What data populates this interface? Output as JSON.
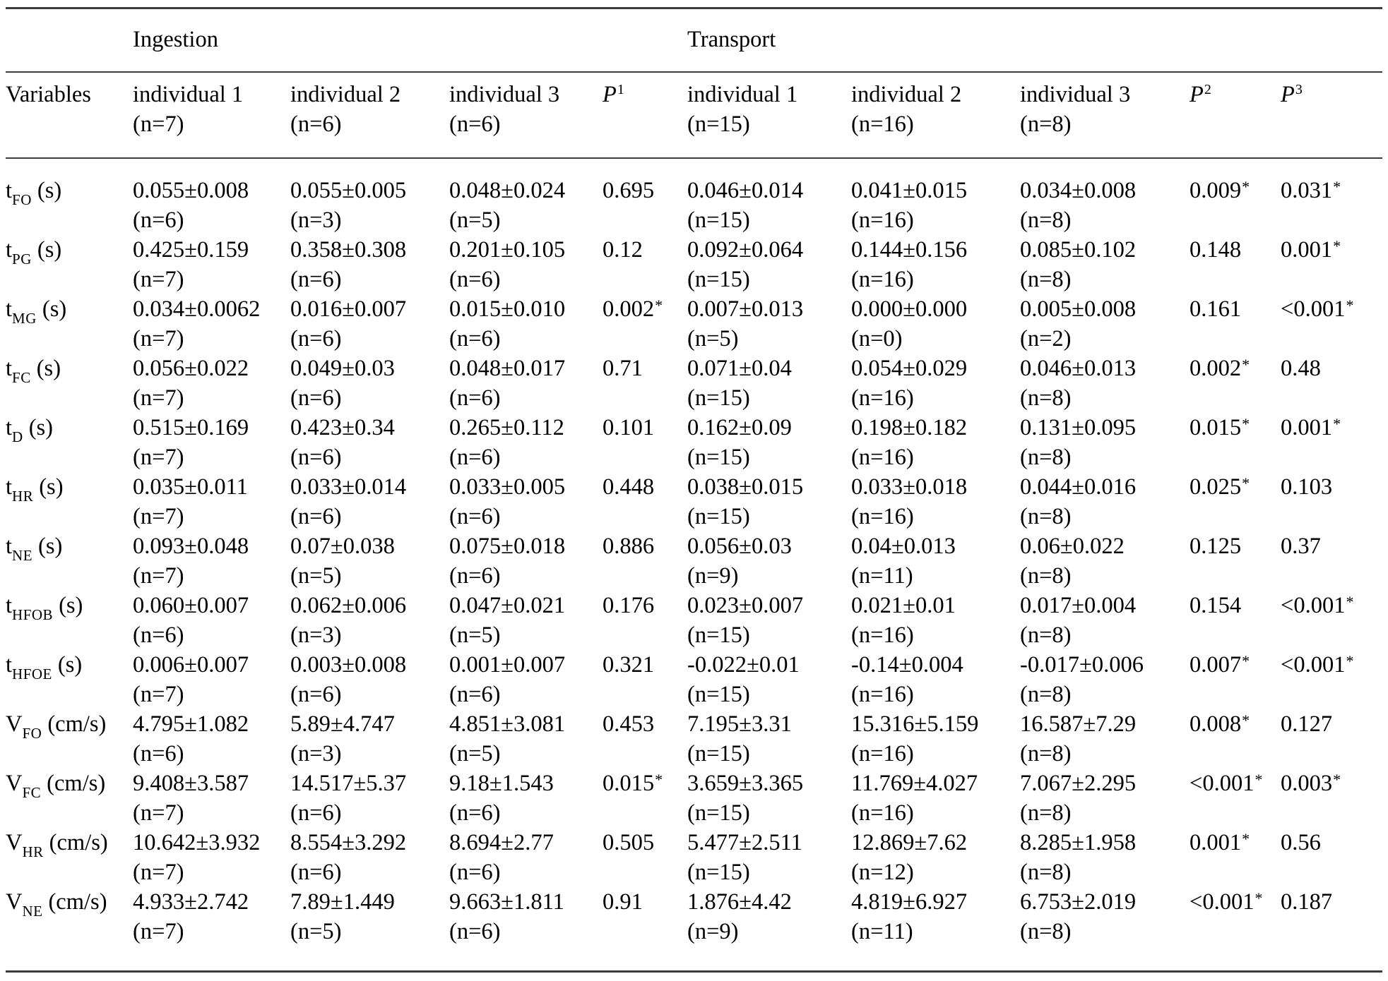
{
  "page": {
    "background_color": "#ffffff",
    "text_color": "#000000",
    "rule_color": "#3c3c3c"
  },
  "table": {
    "corner_header": "Variables",
    "groups": [
      {
        "label": "Ingestion"
      },
      {
        "label": "Transport"
      }
    ],
    "column_headers": [
      {
        "line1": "individual 1",
        "line2": "(n=7)"
      },
      {
        "line1": "individual 2",
        "line2": "(n=6)"
      },
      {
        "line1": "individual 3",
        "line2": "(n=6)"
      },
      {
        "base": "P",
        "sup": "1"
      },
      {
        "line1": "individual 1",
        "line2": "(n=15)"
      },
      {
        "line1": "individual 2",
        "line2": "(n=16)"
      },
      {
        "line1": "individual 3",
        "line2": "(n=8)"
      },
      {
        "base": "P",
        "sup": "2"
      },
      {
        "base": "P",
        "sup": "3"
      }
    ],
    "rows": [
      {
        "variable": {
          "base": "t",
          "sub": "FO",
          "unit": "(s)"
        },
        "cells": [
          {
            "v": "0.055±0.008",
            "n": "(n=6)"
          },
          {
            "v": "0.055±0.005",
            "n": "(n=3)"
          },
          {
            "v": "0.048±0.024",
            "n": "(n=5)"
          },
          {
            "p": "0.695",
            "sup": ""
          },
          {
            "v": "0.046±0.014",
            "n": "(n=15)"
          },
          {
            "v": "0.041±0.015",
            "n": "(n=16)"
          },
          {
            "v": "0.034±0.008",
            "n": "(n=8)"
          },
          {
            "p": "0.009",
            "sup": "*"
          },
          {
            "p": "0.031",
            "sup": "*"
          }
        ]
      },
      {
        "variable": {
          "base": "t",
          "sub": "PG",
          "unit": "(s)"
        },
        "cells": [
          {
            "v": "0.425±0.159",
            "n": "(n=7)"
          },
          {
            "v": "0.358±0.308",
            "n": "(n=6)"
          },
          {
            "v": "0.201±0.105",
            "n": "(n=6)"
          },
          {
            "p": "0.12",
            "sup": ""
          },
          {
            "v": "0.092±0.064",
            "n": "(n=15)"
          },
          {
            "v": "0.144±0.156",
            "n": "(n=16)"
          },
          {
            "v": "0.085±0.102",
            "n": "(n=8)"
          },
          {
            "p": "0.148",
            "sup": ""
          },
          {
            "p": "0.001",
            "sup": "*"
          }
        ]
      },
      {
        "variable": {
          "base": "t",
          "sub": "MG",
          "unit": "(s)"
        },
        "cells": [
          {
            "v": "0.034±0.0062",
            "n": "(n=7)"
          },
          {
            "v": "0.016±0.007",
            "n": "(n=6)"
          },
          {
            "v": "0.015±0.010",
            "n": "(n=6)"
          },
          {
            "p": "0.002",
            "sup": "*"
          },
          {
            "v": "0.007±0.013",
            "n": "(n=5)"
          },
          {
            "v": "0.000±0.000",
            "n": "(n=0)"
          },
          {
            "v": "0.005±0.008",
            "n": "(n=2)"
          },
          {
            "p": "0.161",
            "sup": ""
          },
          {
            "p": "<0.001",
            "sup": "*"
          }
        ]
      },
      {
        "variable": {
          "base": "t",
          "sub": "FC",
          "unit": "(s)"
        },
        "cells": [
          {
            "v": "0.056±0.022",
            "n": "(n=7)"
          },
          {
            "v": "0.049±0.03",
            "n": "(n=6)"
          },
          {
            "v": "0.048±0.017",
            "n": "(n=6)"
          },
          {
            "p": "0.71",
            "sup": ""
          },
          {
            "v": "0.071±0.04",
            "n": "(n=15)"
          },
          {
            "v": "0.054±0.029",
            "n": "(n=16)"
          },
          {
            "v": "0.046±0.013",
            "n": "(n=8)"
          },
          {
            "p": "0.002",
            "sup": "*"
          },
          {
            "p": "0.48",
            "sup": ""
          }
        ]
      },
      {
        "variable": {
          "base": "t",
          "sub": "D",
          "unit": "(s)"
        },
        "cells": [
          {
            "v": "0.515±0.169",
            "n": "(n=7)"
          },
          {
            "v": "0.423±0.34",
            "n": "(n=6)"
          },
          {
            "v": "0.265±0.112",
            "n": "(n=6)"
          },
          {
            "p": "0.101",
            "sup": ""
          },
          {
            "v": "0.162±0.09",
            "n": "(n=15)"
          },
          {
            "v": "0.198±0.182",
            "n": "(n=16)"
          },
          {
            "v": "0.131±0.095",
            "n": "(n=8)"
          },
          {
            "p": "0.015",
            "sup": "*"
          },
          {
            "p": "0.001",
            "sup": "*"
          }
        ]
      },
      {
        "variable": {
          "base": "t",
          "sub": "HR",
          "unit": "(s)"
        },
        "cells": [
          {
            "v": "0.035±0.011",
            "n": "(n=7)"
          },
          {
            "v": "0.033±0.014",
            "n": "(n=6)"
          },
          {
            "v": "0.033±0.005",
            "n": "(n=6)"
          },
          {
            "p": "0.448",
            "sup": ""
          },
          {
            "v": "0.038±0.015",
            "n": "(n=15)"
          },
          {
            "v": "0.033±0.018",
            "n": "(n=16)"
          },
          {
            "v": "0.044±0.016",
            "n": "(n=8)"
          },
          {
            "p": "0.025",
            "sup": "*"
          },
          {
            "p": "0.103",
            "sup": ""
          }
        ]
      },
      {
        "variable": {
          "base": "t",
          "sub": "NE",
          "unit": "(s)"
        },
        "cells": [
          {
            "v": "0.093±0.048",
            "n": "(n=7)"
          },
          {
            "v": "0.07±0.038",
            "n": "(n=5)"
          },
          {
            "v": "0.075±0.018",
            "n": "(n=6)"
          },
          {
            "p": "0.886",
            "sup": ""
          },
          {
            "v": "0.056±0.03",
            "n": "(n=9)"
          },
          {
            "v": "0.04±0.013",
            "n": "(n=11)"
          },
          {
            "v": "0.06±0.022",
            "n": "(n=8)"
          },
          {
            "p": "0.125",
            "sup": ""
          },
          {
            "p": "0.37",
            "sup": ""
          }
        ]
      },
      {
        "variable": {
          "base": "t",
          "sub": "HFOB",
          "unit": "(s)"
        },
        "cells": [
          {
            "v": "0.060±0.007",
            "n": "(n=6)"
          },
          {
            "v": "0.062±0.006",
            "n": "(n=3)"
          },
          {
            "v": "0.047±0.021",
            "n": "(n=5)"
          },
          {
            "p": "0.176",
            "sup": ""
          },
          {
            "v": "0.023±0.007",
            "n": "(n=15)"
          },
          {
            "v": "0.021±0.01",
            "n": "(n=16)"
          },
          {
            "v": "0.017±0.004",
            "n": "(n=8)"
          },
          {
            "p": "0.154",
            "sup": ""
          },
          {
            "p": "<0.001",
            "sup": "*"
          }
        ]
      },
      {
        "variable": {
          "base": "t",
          "sub": "HFOE",
          "unit": "(s)"
        },
        "cells": [
          {
            "v": "0.006±0.007",
            "n": "(n=7)"
          },
          {
            "v": "0.003±0.008",
            "n": "(n=6)"
          },
          {
            "v": "0.001±0.007",
            "n": "(n=6)"
          },
          {
            "p": "0.321",
            "sup": ""
          },
          {
            "v": "-0.022±0.01",
            "n": "(n=15)"
          },
          {
            "v": "-0.14±0.004",
            "n": "(n=16)"
          },
          {
            "v": "-0.017±0.006",
            "n": "(n=8)"
          },
          {
            "p": "0.007",
            "sup": "*"
          },
          {
            "p": "<0.001",
            "sup": "*"
          }
        ]
      },
      {
        "variable": {
          "base": "V",
          "sub": "FO",
          "unit": "(cm/s)"
        },
        "cells": [
          {
            "v": "4.795±1.082",
            "n": "(n=6)"
          },
          {
            "v": "5.89±4.747",
            "n": "(n=3)"
          },
          {
            "v": "4.851±3.081",
            "n": "(n=5)"
          },
          {
            "p": "0.453",
            "sup": ""
          },
          {
            "v": "7.195±3.31",
            "n": "(n=15)"
          },
          {
            "v": "15.316±5.159",
            "n": "(n=16)"
          },
          {
            "v": "16.587±7.29",
            "n": "(n=8)"
          },
          {
            "p": "0.008",
            "sup": "*"
          },
          {
            "p": "0.127",
            "sup": ""
          }
        ]
      },
      {
        "variable": {
          "base": "V",
          "sub": "FC",
          "unit": "(cm/s)"
        },
        "cells": [
          {
            "v": "9.408±3.587",
            "n": "(n=7)"
          },
          {
            "v": "14.517±5.37",
            "n": "(n=6)"
          },
          {
            "v": "9.18±1.543",
            "n": "(n=6)"
          },
          {
            "p": "0.015",
            "sup": "*"
          },
          {
            "v": "3.659±3.365",
            "n": "(n=15)"
          },
          {
            "v": "11.769±4.027",
            "n": "(n=16)"
          },
          {
            "v": "7.067±2.295",
            "n": "(n=8)"
          },
          {
            "p": "<0.001",
            "sup": "*"
          },
          {
            "p": "0.003",
            "sup": "*"
          }
        ]
      },
      {
        "variable": {
          "base": "V",
          "sub": "HR",
          "unit": "(cm/s)"
        },
        "cells": [
          {
            "v": "10.642±3.932",
            "n": "(n=7)"
          },
          {
            "v": "8.554±3.292",
            "n": "(n=6)"
          },
          {
            "v": "8.694±2.77",
            "n": "(n=6)"
          },
          {
            "p": "0.505",
            "sup": ""
          },
          {
            "v": "5.477±2.511",
            "n": "(n=15)"
          },
          {
            "v": "12.869±7.62",
            "n": "(n=12)"
          },
          {
            "v": "8.285±1.958",
            "n": "(n=8)"
          },
          {
            "p": "0.001",
            "sup": "*"
          },
          {
            "p": "0.56",
            "sup": ""
          }
        ]
      },
      {
        "variable": {
          "base": "V",
          "sub": "NE",
          "unit": "(cm/s)"
        },
        "cells": [
          {
            "v": "4.933±2.742",
            "n": "(n=7)"
          },
          {
            "v": "7.89±1.449",
            "n": "(n=5)"
          },
          {
            "v": "9.663±1.811",
            "n": "(n=6)"
          },
          {
            "p": "0.91",
            "sup": ""
          },
          {
            "v": "1.876±4.42",
            "n": "(n=9)"
          },
          {
            "v": "4.819±6.927",
            "n": "(n=11)"
          },
          {
            "v": "6.753±2.019",
            "n": "(n=8)"
          },
          {
            "p": "<0.001",
            "sup": "*"
          },
          {
            "p": "0.187",
            "sup": ""
          }
        ]
      }
    ]
  }
}
